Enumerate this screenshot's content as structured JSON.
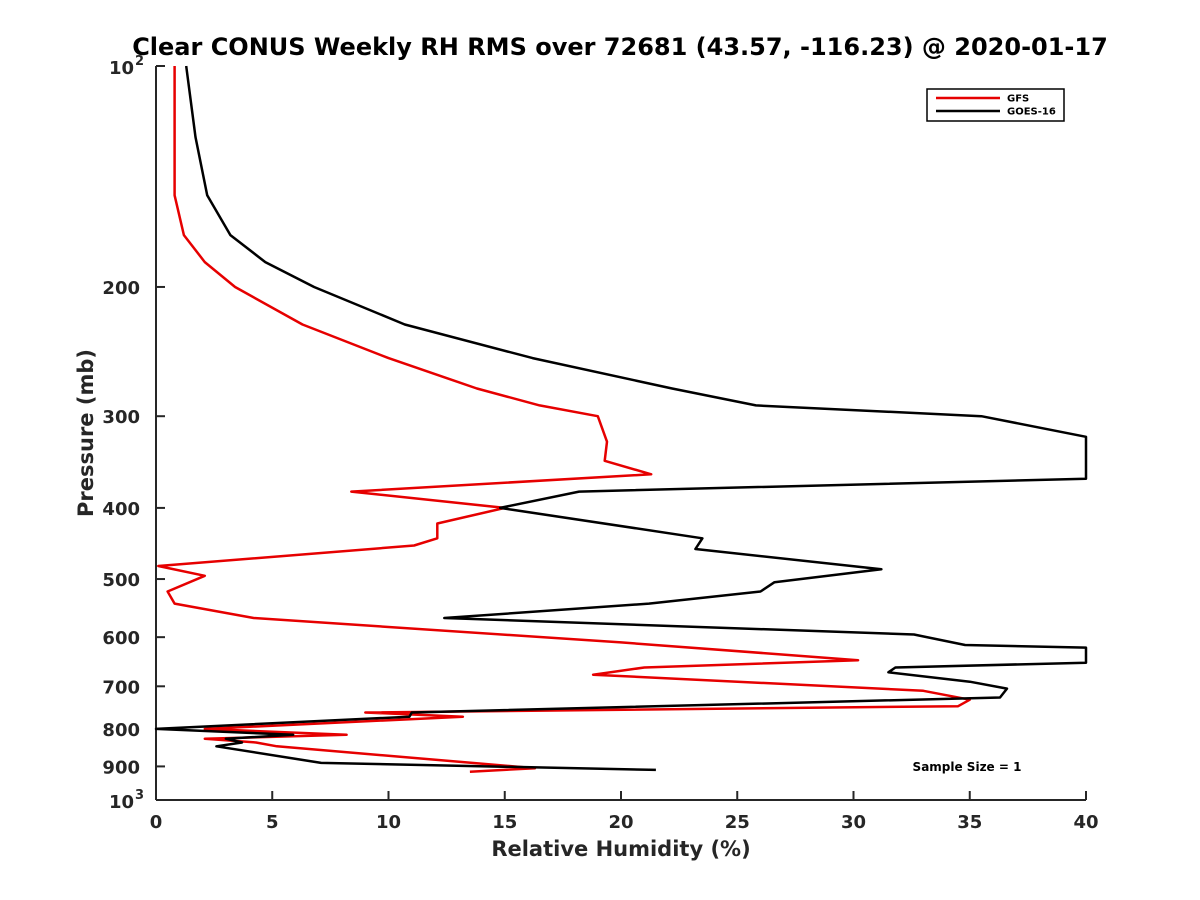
{
  "chart_data": {
    "type": "line",
    "title": "Clear CONUS Weekly RH RMS over 72681 (43.57, -116.23) @ 2020-01-17",
    "xlabel": "Relative Humidity (%)",
    "ylabel": "Pressure (mb)",
    "xlim": [
      0,
      40
    ],
    "ylim": [
      100,
      1000
    ],
    "yscale": "log",
    "y_reversed": true,
    "x_ticks": [
      "0",
      "5",
      "10",
      "15",
      "20",
      "25",
      "30",
      "35",
      "40"
    ],
    "y_ticks": [
      {
        "value": 100,
        "label": "10",
        "sup": "2"
      },
      {
        "value": 200,
        "label": "200",
        "sup": ""
      },
      {
        "value": 300,
        "label": "300",
        "sup": ""
      },
      {
        "value": 400,
        "label": "400",
        "sup": ""
      },
      {
        "value": 500,
        "label": "500",
        "sup": ""
      },
      {
        "value": 600,
        "label": "600",
        "sup": ""
      },
      {
        "value": 700,
        "label": "700",
        "sup": ""
      },
      {
        "value": 800,
        "label": "800",
        "sup": ""
      },
      {
        "value": 900,
        "label": "900",
        "sup": ""
      },
      {
        "value": 1000,
        "label": "10",
        "sup": "3"
      }
    ],
    "grid": false,
    "legend_position": "top-right",
    "annotation": "Sample Size = 1",
    "series": [
      {
        "name": "GFS",
        "color": "#e60000",
        "points": [
          [
            0.8,
            100
          ],
          [
            0.8,
            125
          ],
          [
            0.8,
            150
          ],
          [
            1.2,
            170
          ],
          [
            2.1,
            185
          ],
          [
            3.4,
            200
          ],
          [
            6.3,
            225
          ],
          [
            10.0,
            250
          ],
          [
            13.8,
            275
          ],
          [
            16.5,
            290
          ],
          [
            19.0,
            300
          ],
          [
            19.4,
            325
          ],
          [
            19.3,
            345
          ],
          [
            21.3,
            360
          ],
          [
            8.4,
            380
          ],
          [
            15.0,
            400
          ],
          [
            12.1,
            420
          ],
          [
            12.1,
            440
          ],
          [
            11.1,
            450
          ],
          [
            0.1,
            480
          ],
          [
            2.1,
            495
          ],
          [
            0.5,
            520
          ],
          [
            0.8,
            540
          ],
          [
            4.2,
            565
          ],
          [
            20.0,
            610
          ],
          [
            30.2,
            645
          ],
          [
            21.0,
            660
          ],
          [
            18.8,
            675
          ],
          [
            33.0,
            710
          ],
          [
            35.0,
            730
          ],
          [
            34.5,
            745
          ],
          [
            9.0,
            760
          ],
          [
            13.2,
            770
          ],
          [
            2.1,
            800
          ],
          [
            8.2,
            815
          ],
          [
            2.1,
            825
          ],
          [
            4.3,
            835
          ],
          [
            5.2,
            845
          ],
          [
            16.3,
            905
          ],
          [
            13.5,
            915
          ]
        ]
      },
      {
        "name": "GOES-16",
        "color": "#000000",
        "points": [
          [
            1.3,
            100
          ],
          [
            1.7,
            125
          ],
          [
            2.2,
            150
          ],
          [
            3.2,
            170
          ],
          [
            4.7,
            185
          ],
          [
            6.8,
            200
          ],
          [
            10.7,
            225
          ],
          [
            16.2,
            250
          ],
          [
            22.2,
            275
          ],
          [
            25.8,
            290
          ],
          [
            35.5,
            300
          ],
          [
            40.0,
            320
          ],
          [
            40.0,
            365
          ],
          [
            18.2,
            380
          ],
          [
            14.8,
            400
          ],
          [
            23.5,
            440
          ],
          [
            23.2,
            455
          ],
          [
            31.2,
            485
          ],
          [
            26.6,
            505
          ],
          [
            26.0,
            520
          ],
          [
            21.2,
            540
          ],
          [
            12.4,
            565
          ],
          [
            32.6,
            595
          ],
          [
            34.8,
            615
          ],
          [
            40.0,
            620
          ],
          [
            40.0,
            650
          ],
          [
            31.8,
            660
          ],
          [
            31.5,
            670
          ],
          [
            35.0,
            690
          ],
          [
            36.6,
            705
          ],
          [
            36.3,
            725
          ],
          [
            11.0,
            760
          ],
          [
            10.9,
            770
          ],
          [
            0.0,
            800
          ],
          [
            5.9,
            815
          ],
          [
            3.0,
            825
          ],
          [
            3.7,
            835
          ],
          [
            2.6,
            845
          ],
          [
            7.1,
            890
          ],
          [
            21.5,
            910
          ]
        ]
      }
    ]
  }
}
